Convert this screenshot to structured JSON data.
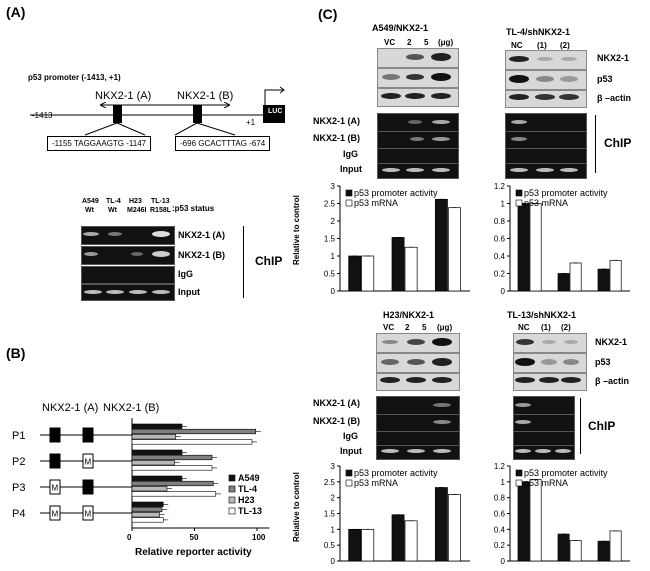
{
  "panels": {
    "a": "(A)",
    "b": "(B)",
    "c": "(C)"
  },
  "promoter": {
    "title": "p53 promoter (-1413, +1)",
    "site_a": "NKX2-1 (A)",
    "site_b": "NKX2-1 (B)",
    "left_end": "-1413",
    "plus_one": "+1",
    "luc": "LUC",
    "seq_a": "-1155 TAGGAAGTG -1147",
    "seq_b": "-696 GCACTTTAG -674"
  },
  "chip_a": {
    "cell_lines": [
      "A549",
      "TL-4",
      "H23",
      "TL-13"
    ],
    "status": [
      "Wt",
      "Wt",
      "M246I",
      "R158L"
    ],
    "status_label": ":p53 status",
    "rows": [
      "NKX2-1 (A)",
      "NKX2-1 (B)",
      "IgG",
      "Input"
    ],
    "chip": "ChIP"
  },
  "reporter": {
    "site_labels": [
      "NKX2-1 (A)",
      "NKX2-1 (B)"
    ],
    "constructs": [
      "P1",
      "P2",
      "P3",
      "P4"
    ],
    "mut_mark": "M",
    "legend": [
      "A549",
      "TL-4",
      "H23",
      "TL-13"
    ],
    "colors": [
      "#111111",
      "#808080",
      "#b9b9b9",
      "#ffffff"
    ],
    "xticks": [
      "0",
      "50",
      "100"
    ],
    "xlabel": "Relative  reporter activity"
  },
  "c_blots": [
    {
      "title": "A549/NKX2-1",
      "lanes": [
        "VC",
        "2",
        "5",
        "(μg)"
      ]
    },
    {
      "title": "TL-4/shNKX2-1",
      "lanes": [
        "NC",
        "(1)",
        "(2)"
      ]
    },
    {
      "title": "H23/NKX2-1",
      "lanes": [
        "VC",
        "2",
        "5",
        "(μg)"
      ]
    },
    {
      "title": "TL-13/shNKX2-1",
      "lanes": [
        "NC",
        "(1)",
        "(2)"
      ]
    }
  ],
  "c_blot_rows": [
    "NKX2-1",
    "p53",
    "β –actin"
  ],
  "c_chip_rows": [
    "NKX2-1 (A)",
    "NKX2-1 (B)",
    "IgG",
    "Input"
  ],
  "c_chip_label": "ChIP",
  "c_ylabel": "Relative to control",
  "chart_data": [
    {
      "type": "bar",
      "title": "",
      "ylabel": "Relative  reporter activity",
      "categories": [
        "P1",
        "P2",
        "P3",
        "P4"
      ],
      "series": [
        {
          "name": "A549",
          "values": [
            40,
            40,
            40,
            25
          ]
        },
        {
          "name": "TL-4",
          "values": [
            99,
            64,
            65,
            24
          ]
        },
        {
          "name": "H23",
          "values": [
            35,
            34,
            28,
            22
          ]
        },
        {
          "name": "TL-13",
          "values": [
            96,
            64,
            67,
            25
          ]
        }
      ],
      "xlim": [
        0,
        110
      ],
      "xticks": [
        0,
        50,
        100
      ]
    },
    {
      "type": "bar",
      "ylabel": "Relative to control",
      "categories": [
        "VC",
        "2",
        "5"
      ],
      "series": [
        {
          "name": "p53 promoter activity",
          "values": [
            1.0,
            1.53,
            2.62
          ]
        },
        {
          "name": "p53 mRNA",
          "values": [
            1.0,
            1.25,
            2.38
          ]
        }
      ],
      "ylim": [
        0,
        3
      ],
      "yticks": [
        0,
        0.5,
        1,
        1.5,
        2,
        2.5,
        3
      ]
    },
    {
      "type": "bar",
      "categories": [
        "NC",
        "(1)",
        "(2)"
      ],
      "series": [
        {
          "name": "p53 promoter activity",
          "values": [
            1.0,
            0.2,
            0.25
          ]
        },
        {
          "name": "p53 mRNA",
          "values": [
            1.0,
            0.32,
            0.35
          ]
        }
      ],
      "ylim": [
        0,
        1.2
      ],
      "yticks": [
        0,
        0.2,
        0.4,
        0.6,
        0.8,
        1,
        1.2
      ]
    },
    {
      "type": "bar",
      "ylabel": "Relative to control",
      "categories": [
        "VC",
        "2",
        "5"
      ],
      "series": [
        {
          "name": "p53 promoter activity",
          "values": [
            1.0,
            1.46,
            2.32
          ]
        },
        {
          "name": "p53 mRNA",
          "values": [
            1.0,
            1.27,
            2.1
          ]
        }
      ],
      "ylim": [
        0,
        3
      ],
      "yticks": [
        0,
        0.5,
        1,
        1.5,
        2,
        2.5,
        3
      ]
    },
    {
      "type": "bar",
      "categories": [
        "NC",
        "(1)",
        "(2)"
      ],
      "series": [
        {
          "name": "p53 promoter activity",
          "values": [
            1.0,
            0.34,
            0.25
          ]
        },
        {
          "name": "p53 mRNA",
          "values": [
            1.03,
            0.26,
            0.38
          ]
        }
      ],
      "ylim": [
        0,
        1.2
      ],
      "yticks": [
        0,
        0.2,
        0.4,
        0.6,
        0.8,
        1,
        1.2
      ]
    }
  ]
}
